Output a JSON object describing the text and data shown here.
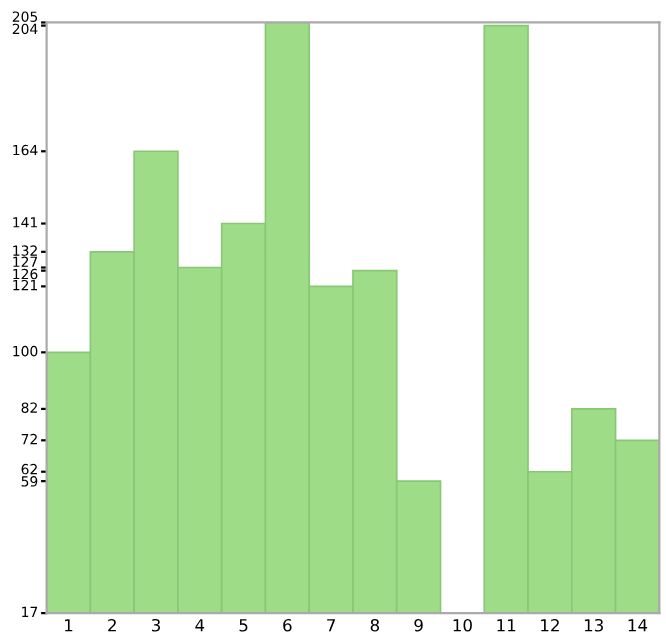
{
  "chart_data": {
    "type": "bar",
    "categories": [
      "1",
      "2",
      "3",
      "4",
      "5",
      "6",
      "7",
      "8",
      "9",
      "10",
      "11",
      "12",
      "13",
      "14"
    ],
    "values": [
      100,
      132,
      164,
      127,
      141,
      205,
      121,
      126,
      59,
      17,
      204,
      62,
      82,
      72
    ],
    "color": "#9edc88",
    "ylim": [
      17,
      205
    ],
    "yticks": [
      17,
      59,
      62,
      72,
      82,
      100,
      121,
      126,
      127,
      132,
      141,
      164,
      204,
      205
    ],
    "grid": false
  }
}
